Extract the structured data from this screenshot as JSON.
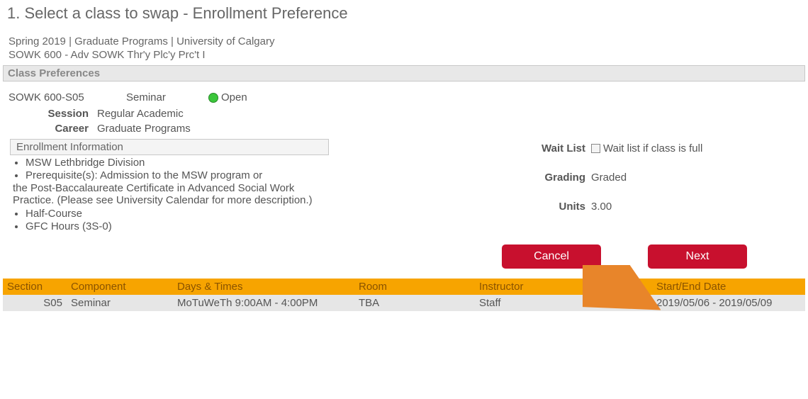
{
  "page": {
    "title": "1.  Select a class to swap - Enrollment Preference",
    "context_line_1": "Spring 2019 | Graduate Programs | University of Calgary",
    "context_line_2": " SOWK  600 - Adv SOWK Thr'y Plc'y Prc't I",
    "section_header": "Class Preferences"
  },
  "class": {
    "code": "SOWK  600-S05",
    "type": "Seminar",
    "status": "Open",
    "session_label": "Session",
    "session_value": "Regular Academic",
    "career_label": "Career",
    "career_value": "Graduate Programs"
  },
  "enroll_info": {
    "header": "Enrollment Information",
    "bullets_a": [
      "MSW Lethbridge Division"
    ],
    "prereq_first": "Prerequisite(s): Admission to the MSW program or",
    "prereq_rest": "the Post-Baccalaureate Certificate in Advanced Social Work Practice. (Please see University Calendar for more description.)",
    "bullets_b": [
      "Half-Course",
      "GFC Hours (3S-0)"
    ]
  },
  "right": {
    "waitlist_label": "Wait List",
    "waitlist_text": "Wait list if class is full",
    "grading_label": "Grading",
    "grading_value": "Graded",
    "units_label": "Units",
    "units_value": "3.00"
  },
  "buttons": {
    "cancel": "Cancel",
    "next": "Next"
  },
  "table": {
    "headers": {
      "section": "Section",
      "component": "Component",
      "days": "Days & Times",
      "room": "Room",
      "instructor": "Instructor",
      "dates": "Start/End Date"
    },
    "rows": [
      {
        "section": "S05",
        "component": "Seminar",
        "days": "MoTuWeTh 9:00AM - 4:00PM",
        "room": "TBA",
        "instructor": "Staff",
        "dates": "2019/05/06 - 2019/05/09"
      }
    ]
  },
  "colors": {
    "status_open": "#3bc63b",
    "button_bg": "#c8102e",
    "table_header_bg": "#f7a400",
    "arrow": "#e8852a"
  }
}
